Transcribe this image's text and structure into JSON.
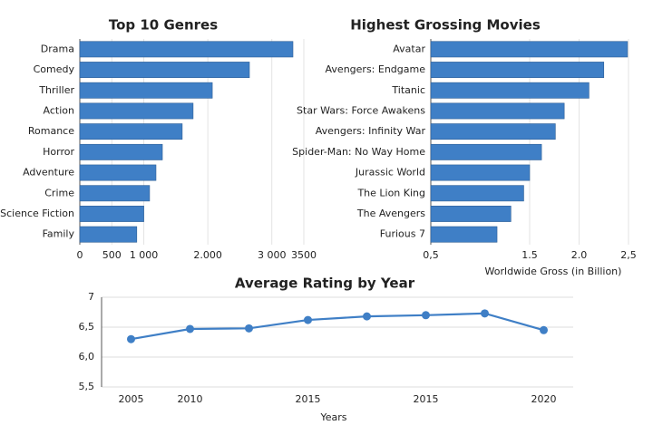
{
  "chart_data": [
    {
      "type": "hbar",
      "title": "Top 10 Genres",
      "categories": [
        "Drama",
        "Comedy",
        "Thriller",
        "Action",
        "Romance",
        "Horror",
        "Adventure",
        "Crime",
        "Science Fiction",
        "Family"
      ],
      "values": [
        3330,
        2650,
        2070,
        1770,
        1600,
        1290,
        1190,
        1090,
        1000,
        890
      ],
      "color": "#3f7fc6",
      "xlim": [
        0,
        3500
      ],
      "xticks": [
        0,
        500,
        {
          "value": 1000,
          "label": "1 000"
        },
        {
          "value": 2000,
          "label": "2.000"
        },
        {
          "value": 3000,
          "label": "3 000"
        },
        3500
      ],
      "grid": true
    },
    {
      "type": "hbar",
      "title": "Highest Grossing Movies",
      "categories": [
        "Avatar",
        "Avengers: Endgame",
        "Titanic",
        "Star Wars: Force Awakens",
        "Avengers: Infinity War",
        "Spider-Man: No Way Home",
        "Jurassic World",
        "The Lion King",
        "The Avengers",
        "Furious 7"
      ],
      "values": [
        2.49,
        2.25,
        2.1,
        1.85,
        1.76,
        1.62,
        1.5,
        1.44,
        1.31,
        1.17
      ],
      "color": "#3f7fc6",
      "xlabel": "Worldwide Gross (in Billion)",
      "xlim": [
        0.5,
        2.5
      ],
      "xticks": [
        {
          "value": 0.5,
          "label": "0,5"
        },
        1.5,
        {
          "value": 2,
          "label": "2.0"
        },
        {
          "value": 2.5,
          "label": "2,5"
        }
      ],
      "grid": true
    },
    {
      "type": "line",
      "title": "Average Rating by Year",
      "categories": [
        "2005",
        "2010",
        null,
        "2015",
        null,
        "2015",
        null,
        "2020"
      ],
      "values": [
        6.3,
        6.47,
        6.48,
        6.62,
        6.68,
        6.7,
        6.73,
        6.45
      ],
      "color": "#3f7fc6",
      "xlabel": "Years",
      "ylim": [
        5.5,
        7
      ],
      "yticks": [
        7,
        {
          "value": 6.5,
          "label": "6,5"
        },
        {
          "value": 6,
          "label": "6,0"
        },
        {
          "value": 5.5,
          "label": "5,5"
        }
      ],
      "grid": true
    }
  ]
}
